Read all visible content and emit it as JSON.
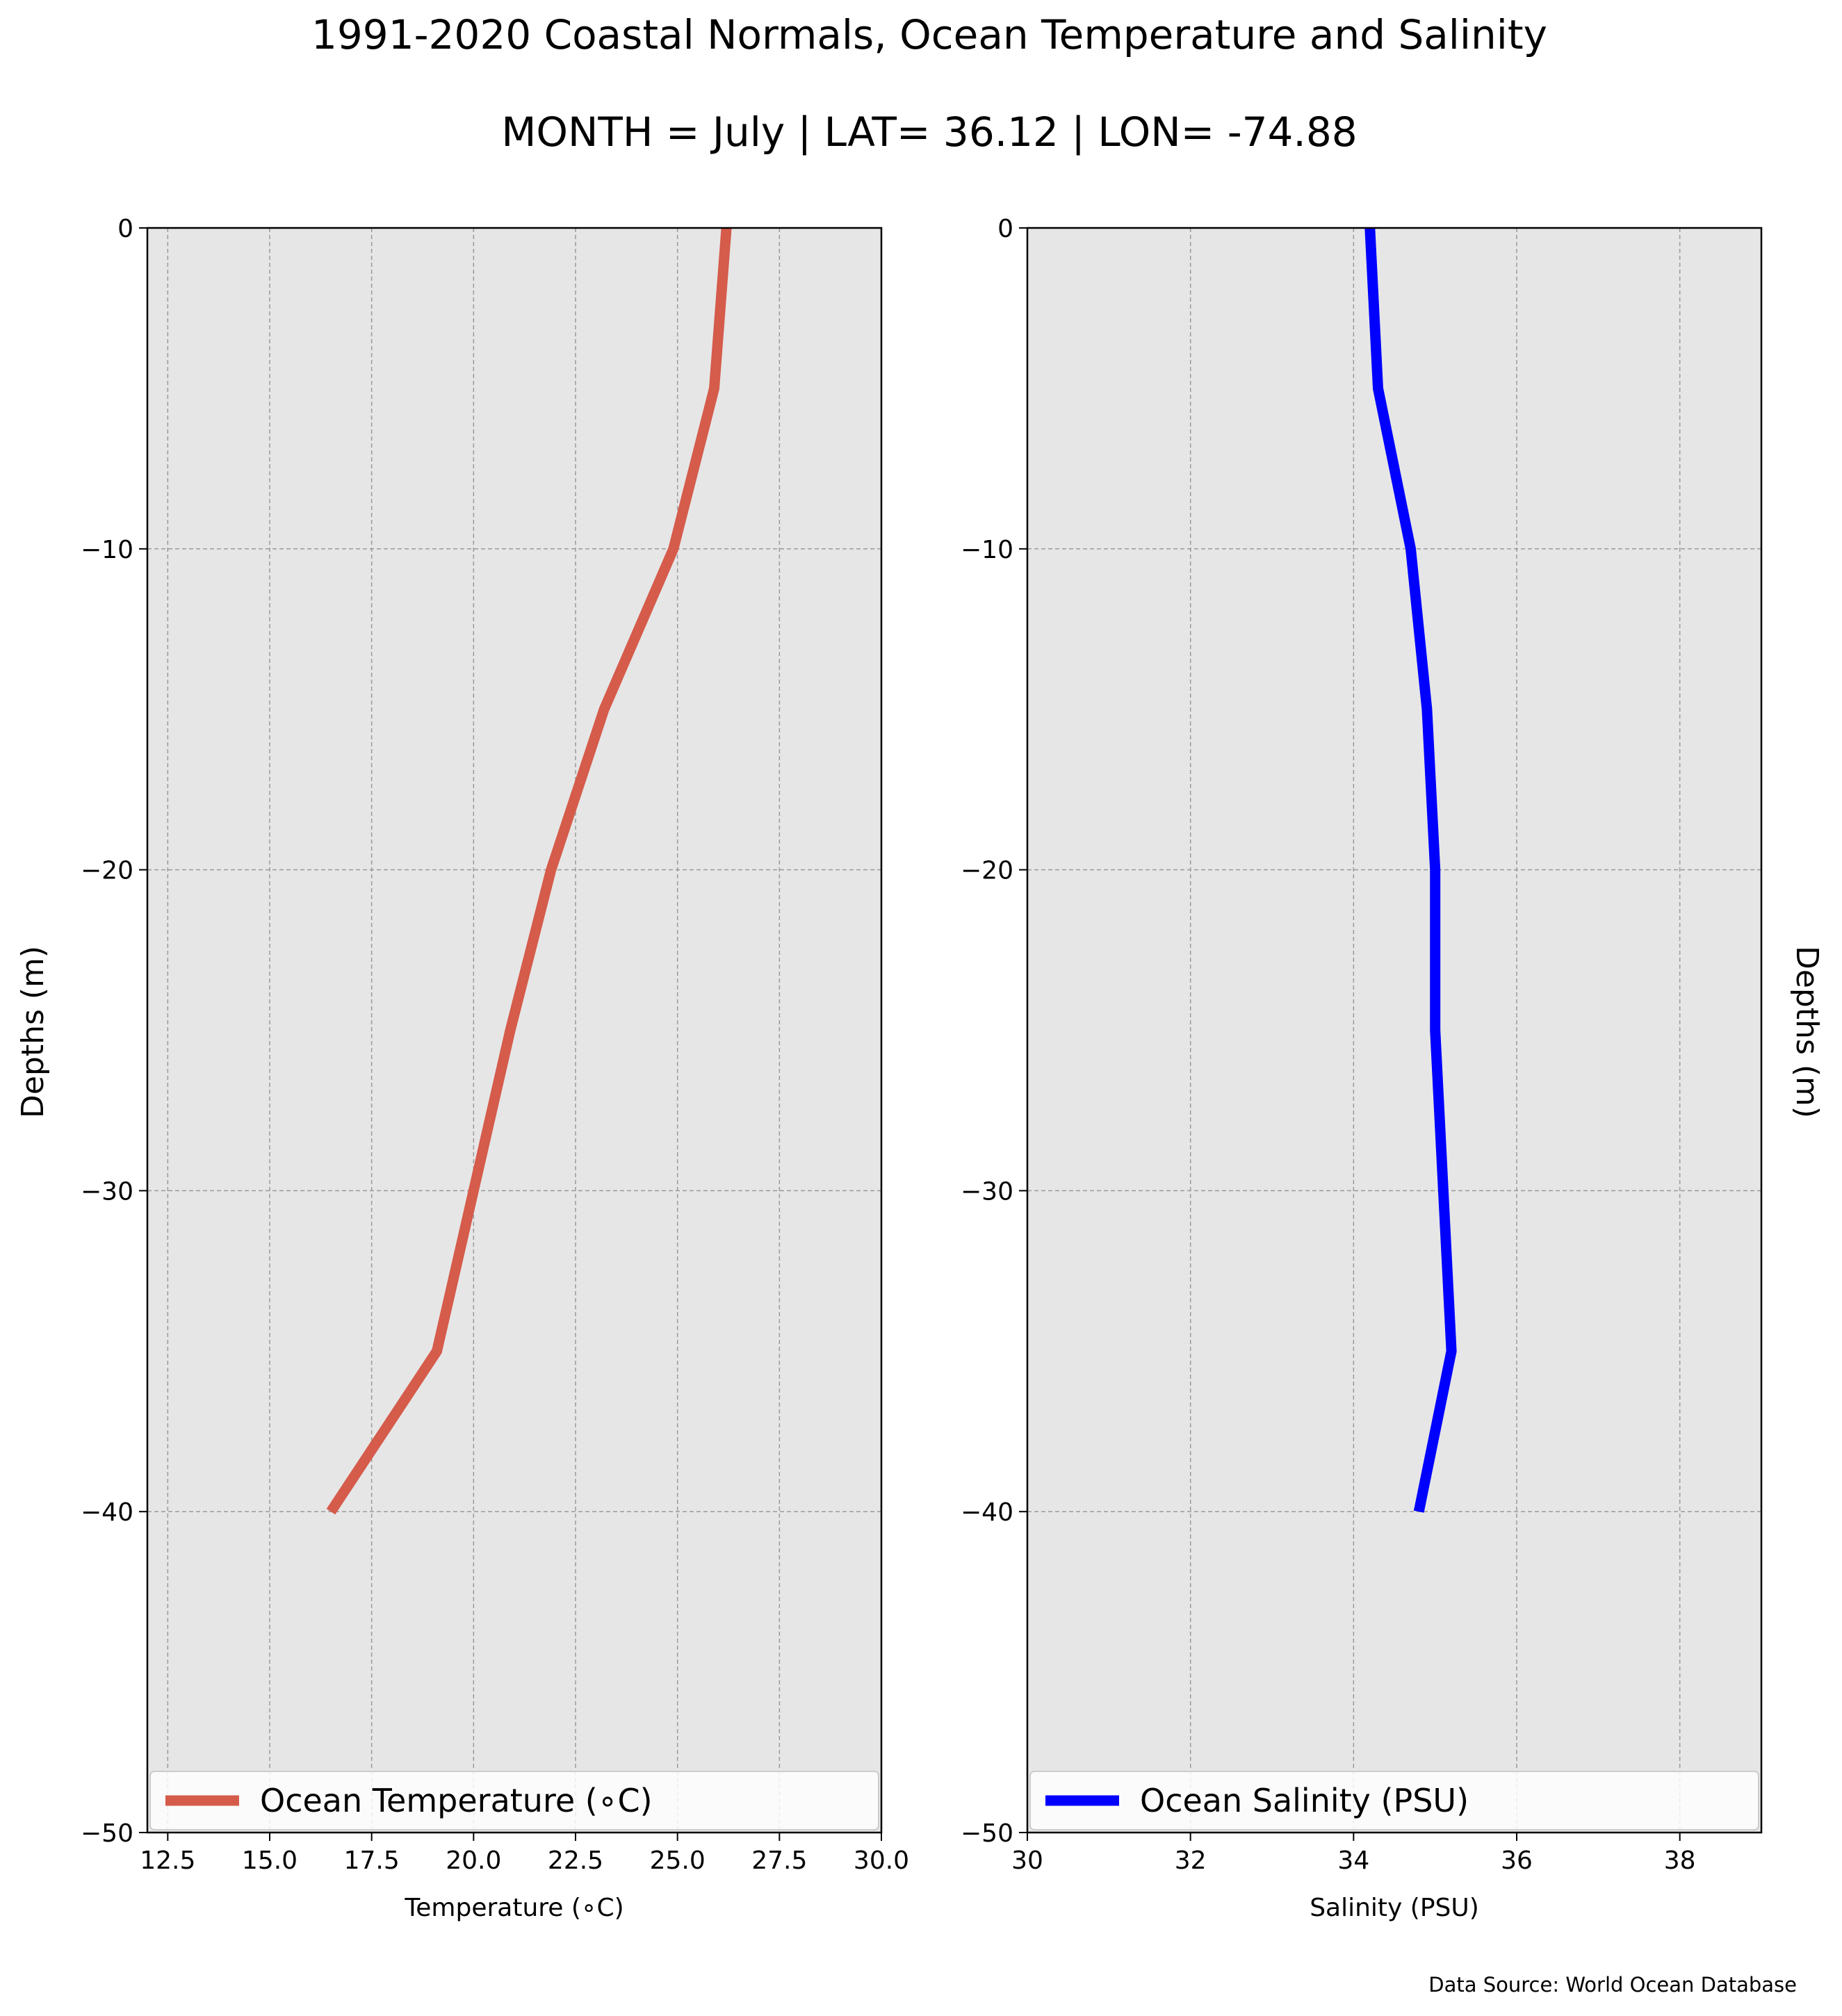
{
  "title": "1991-2020 Coastal Normals, Ocean Temperature and Salinity",
  "subtitle": "MONTH = July | LAT= 36.12 | LON= -74.88",
  "ylabel": "Depths (m)",
  "source": "Data Source: World Ocean Database",
  "chart_data": [
    {
      "type": "line",
      "xlabel": "Temperature (∘C)",
      "ylabel": "Depths (m)",
      "xlim": [
        12.0,
        30.0
      ],
      "ylim": [
        -50,
        0
      ],
      "xticks": [
        12.5,
        15.0,
        17.5,
        20.0,
        22.5,
        25.0,
        27.5,
        30.0
      ],
      "xtick_labels": [
        "12.5",
        "15.0",
        "17.5",
        "20.0",
        "22.5",
        "25.0",
        "27.5",
        "30.0"
      ],
      "yticks": [
        0,
        -10,
        -20,
        -30,
        -40,
        -50
      ],
      "ytick_labels": [
        "0",
        "−10",
        "−20",
        "−30",
        "−40",
        "−50"
      ],
      "grid": true,
      "legend_position": "bottom",
      "series": [
        {
          "name": "Ocean Temperature (∘C)",
          "color": "#d55b4b",
          "x": [
            26.2,
            25.9,
            24.9,
            23.2,
            21.9,
            20.9,
            20.0,
            19.1,
            16.5
          ],
          "y": [
            0,
            -5,
            -10,
            -15,
            -20,
            -25,
            -30,
            -35,
            -40
          ]
        }
      ]
    },
    {
      "type": "line",
      "xlabel": "Salinity (PSU)",
      "ylabel": "Depths (m)",
      "xlim": [
        30,
        39
      ],
      "ylim": [
        -50,
        0
      ],
      "xticks": [
        30,
        32,
        34,
        36,
        38
      ],
      "xtick_labels": [
        "30",
        "32",
        "34",
        "36",
        "38"
      ],
      "yticks": [
        0,
        -10,
        -20,
        -30,
        -40,
        -50
      ],
      "ytick_labels": [
        "0",
        "−10",
        "−20",
        "−30",
        "−40",
        "−50"
      ],
      "grid": true,
      "legend_position": "bottom",
      "series": [
        {
          "name": "Ocean Salinity (PSU)",
          "color": "#0000ff",
          "x": [
            34.2,
            34.3,
            34.7,
            34.9,
            35.0,
            35.0,
            35.1,
            35.2,
            34.8
          ],
          "y": [
            0,
            -5,
            -10,
            -15,
            -20,
            -25,
            -30,
            -35,
            -40
          ]
        }
      ]
    }
  ]
}
